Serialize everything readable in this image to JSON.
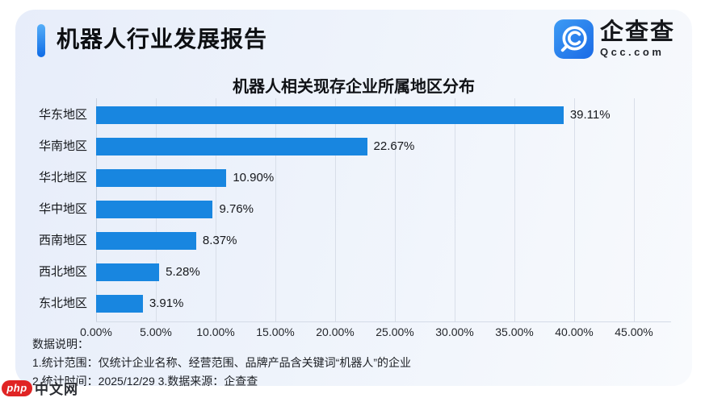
{
  "header": {
    "title": "机器人行业发展报告"
  },
  "logo": {
    "name": "企查查",
    "domain": "Qcc.com"
  },
  "chart_data": {
    "type": "bar",
    "orientation": "horizontal",
    "title": "机器人相关现存企业所属地区分布",
    "categories": [
      "华东地区",
      "华南地区",
      "华北地区",
      "华中地区",
      "西南地区",
      "西北地区",
      "东北地区"
    ],
    "values": [
      39.11,
      22.67,
      10.9,
      9.76,
      8.37,
      5.28,
      3.91
    ],
    "value_labels": [
      "39.11%",
      "22.67%",
      "10.90%",
      "9.76%",
      "8.37%",
      "5.28%",
      "3.91%"
    ],
    "x_ticks": [
      "0.00%",
      "5.00%",
      "10.00%",
      "15.00%",
      "20.00%",
      "25.00%",
      "30.00%",
      "35.00%",
      "40.00%",
      "45.00%"
    ],
    "xlim": [
      0,
      45
    ],
    "xlabel": "",
    "ylabel": "",
    "grid": true,
    "legend": "none",
    "bar_color": "#1886e0"
  },
  "notes": {
    "heading": "数据说明：",
    "line1": "1.统计范围：仅统计企业名称、经营范围、品牌产品含关键词“机器人”的企业",
    "line2": "2.统计时间：2025/12/29  3.数据来源：企查查"
  },
  "watermark": {
    "badge": "php",
    "text": "中文网"
  },
  "colors": {
    "bar": "#1886e0",
    "accent_bar_top": "#55aef8",
    "accent_bar_bottom": "#0f6ce6",
    "card_bg_left": "#e7edfa",
    "card_bg_right": "#f8fafd",
    "logo_blue": "#2b86ee",
    "watermark_red": "#e02424"
  }
}
